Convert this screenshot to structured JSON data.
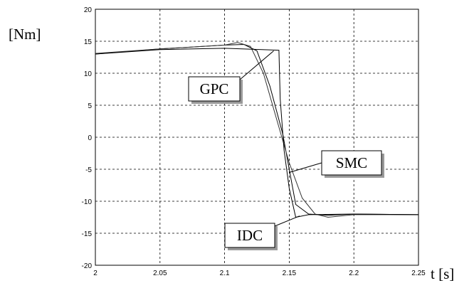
{
  "chart_data": {
    "type": "line",
    "title": "",
    "xlabel": "t [s]",
    "ylabel": "[Nm]",
    "xlim": [
      2,
      2.25
    ],
    "ylim": [
      -20,
      20
    ],
    "grid": true,
    "x_ticks": [
      "2",
      "2.05",
      "2.1",
      "2.15",
      "2.2",
      "2.25"
    ],
    "y_ticks": [
      "20",
      "15",
      "10",
      "5",
      "0",
      "-5",
      "-10",
      "-15",
      "-20"
    ],
    "series": [
      {
        "name": "GPC",
        "x": [
          2.0,
          2.05,
          2.1,
          2.115,
          2.125,
          2.135,
          2.145,
          2.15,
          2.155,
          2.165,
          2.18,
          2.2,
          2.25
        ],
        "y": [
          13.0,
          13.8,
          14.4,
          14.5,
          13.5,
          8.0,
          0.5,
          -5.0,
          -10.5,
          -12.0,
          -12.2,
          -12.0,
          -12.1
        ]
      },
      {
        "name": "SMC",
        "x": [
          2.0,
          2.05,
          2.1,
          2.11,
          2.12,
          2.13,
          2.14,
          2.15,
          2.16,
          2.17,
          2.18,
          2.2,
          2.25
        ],
        "y": [
          13.1,
          13.8,
          14.4,
          14.8,
          14.2,
          10.0,
          3.0,
          -4.0,
          -9.5,
          -12.0,
          -12.5,
          -12.1,
          -12.1
        ]
      },
      {
        "name": "IDC",
        "x": [
          2.0,
          2.05,
          2.1,
          2.142,
          2.143,
          2.146,
          2.15,
          2.155,
          2.165,
          2.2,
          2.25
        ],
        "y": [
          13.0,
          13.7,
          13.9,
          13.6,
          6.0,
          -2.0,
          -8.0,
          -12.5,
          -12.1,
          -12.0,
          -12.1
        ]
      }
    ],
    "annotations": [
      {
        "text": "GPC",
        "points_to": {
          "x": 2.138,
          "y": 13.5
        }
      },
      {
        "text": "SMC",
        "points_to": {
          "x": 2.15,
          "y": -5.5
        }
      },
      {
        "text": "IDC",
        "points_to": {
          "x": 2.158,
          "y": -12.3
        }
      }
    ]
  }
}
